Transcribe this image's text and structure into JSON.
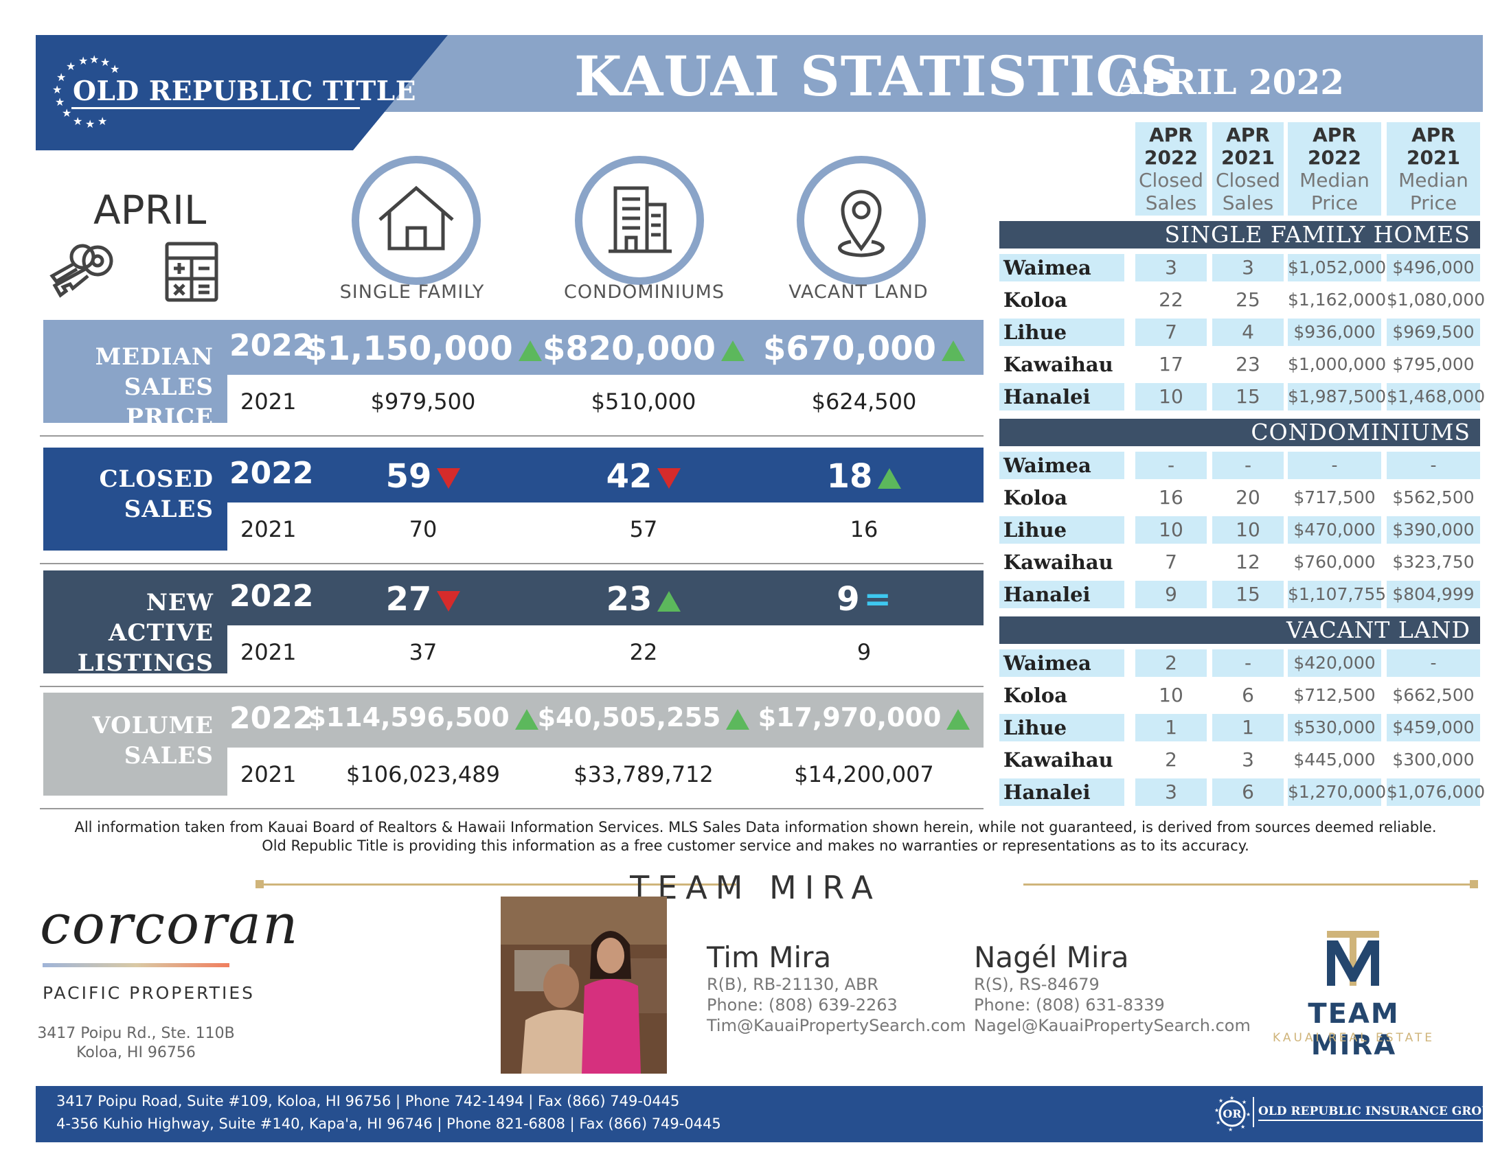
{
  "header": {
    "logo_text": "OLD REPUBLIC TITLE",
    "title": "KAUAI STATISTICS",
    "month": "APRIL 2022"
  },
  "month_label": "APRIL",
  "property_types": [
    {
      "label": "SINGLE FAMILY",
      "icon": "house-icon"
    },
    {
      "label": "CONDOMINIUMS",
      "icon": "building-icon"
    },
    {
      "label": "VACANT LAND",
      "icon": "location-pin-icon"
    }
  ],
  "stats": [
    {
      "label_line1": "MEDIAN",
      "label_line2": "SALES PRICE",
      "color": "#8aa4c8",
      "year1": "2022",
      "year2": "2021",
      "values_2022": [
        "$1,150,000",
        "$820,000",
        "$670,000"
      ],
      "trends": [
        "up",
        "up",
        "up"
      ],
      "values_2021": [
        "$979,500",
        "$510,000",
        "$624,500"
      ]
    },
    {
      "label_line1": "CLOSED",
      "label_line2": "SALES",
      "color": "#264f8f",
      "year1": "2022",
      "year2": "2021",
      "values_2022": [
        "59",
        "42",
        "18"
      ],
      "trends": [
        "down",
        "down",
        "up"
      ],
      "values_2021": [
        "70",
        "57",
        "16"
      ]
    },
    {
      "label_line1": "NEW ACTIVE",
      "label_line2": "LISTINGS",
      "color": "#3c5068",
      "year1": "2022",
      "year2": "2021",
      "values_2022": [
        "27",
        "23",
        "9"
      ],
      "trends": [
        "down",
        "up",
        "equal"
      ],
      "values_2021": [
        "37",
        "22",
        "9"
      ]
    },
    {
      "label_line1": "VOLUME",
      "label_line2": "SALES",
      "color": "#b8bcbd",
      "year1": "2022",
      "year2": "2021",
      "values_2022": [
        "$114,596,500",
        "$40,505,255",
        "$17,970,000"
      ],
      "trends": [
        "up",
        "up",
        "up"
      ],
      "values_2021": [
        "$106,023,489",
        "$33,789,712",
        "$14,200,007"
      ]
    }
  ],
  "table": {
    "headers": [
      {
        "l1": "APR",
        "l2": "2022",
        "l3": "Closed",
        "l4": "Sales"
      },
      {
        "l1": "APR",
        "l2": "2021",
        "l3": "Closed",
        "l4": "Sales"
      },
      {
        "l1": "APR",
        "l2": "2022",
        "l3": "Median",
        "l4": "Price"
      },
      {
        "l1": "APR",
        "l2": "2021",
        "l3": "Median",
        "l4": "Price"
      }
    ],
    "sections": [
      {
        "title": "SINGLE FAMILY HOMES",
        "rows": [
          [
            "Waimea",
            "3",
            "3",
            "$1,052,000",
            "$496,000"
          ],
          [
            "Koloa",
            "22",
            "25",
            "$1,162,000",
            "$1,080,000"
          ],
          [
            "Lihue",
            "7",
            "4",
            "$936,000",
            "$969,500"
          ],
          [
            "Kawaihau",
            "17",
            "23",
            "$1,000,000",
            "$795,000"
          ],
          [
            "Hanalei",
            "10",
            "15",
            "$1,987,500",
            "$1,468,000"
          ]
        ]
      },
      {
        "title": "CONDOMINIUMS",
        "rows": [
          [
            "Waimea",
            "-",
            "-",
            "-",
            "-"
          ],
          [
            "Koloa",
            "16",
            "20",
            "$717,500",
            "$562,500"
          ],
          [
            "Lihue",
            "10",
            "10",
            "$470,000",
            "$390,000"
          ],
          [
            "Kawaihau",
            "7",
            "12",
            "$760,000",
            "$323,750"
          ],
          [
            "Hanalei",
            "9",
            "15",
            "$1,107,755",
            "$804,999"
          ]
        ]
      },
      {
        "title": "VACANT LAND",
        "rows": [
          [
            "Waimea",
            "2",
            "-",
            "$420,000",
            "-"
          ],
          [
            "Koloa",
            "10",
            "6",
            "$712,500",
            "$662,500"
          ],
          [
            "Lihue",
            "1",
            "1",
            "$530,000",
            "$459,000"
          ],
          [
            "Kawaihau",
            "2",
            "3",
            "$445,000",
            "$300,000"
          ],
          [
            "Hanalei",
            "3",
            "6",
            "$1,270,000",
            "$1,076,000"
          ]
        ]
      }
    ]
  },
  "disclaimer": {
    "line1": "All information taken from Kauai Board of Realtors & Hawaii Information Services.  MLS Sales Data information shown herein, while not guaranteed, is derived from sources deemed reliable.",
    "line2": "Old Republic Title is providing this information as a free customer service and makes no warranties or representations as to its accuracy."
  },
  "team": {
    "heading": "TEAM MIRA"
  },
  "corcoran": {
    "logo": "corcoran",
    "sub": "PACIFIC PROPERTIES",
    "address1": "3417 Poipu Rd., Ste. 110B",
    "address2": "Koloa, HI 96756"
  },
  "agents": [
    {
      "name": "Tim Mira",
      "license": "R(B), RB-21130, ABR",
      "phone": "Phone: (808) 639-2263",
      "email": "Tim@KauaiPropertySearch.com"
    },
    {
      "name": "Nagél Mira",
      "license": "R(S), RS-84679",
      "phone": "Phone: (808) 631-8339",
      "email": "Nagel@KauaiPropertySearch.com"
    }
  ],
  "team_logo": {
    "name": "TEAM MIRA",
    "sub": "KAUAI REAL ESTATE"
  },
  "footer": {
    "addr1": "3417 Poipu Road, Suite #109, Koloa, HI 96756 | Phone 742-1494 | Fax (866) 749-0445",
    "addr2": "4-356 Kuhio Highway, Suite #140, Kapa'a, HI  96746 | Phone 821-6808 | Fax (866) 749-0445",
    "group_logo": "OLD REPUBLIC INSURANCE GROUP"
  },
  "colors": {
    "navy": "#264f8f",
    "steel": "#8aa4c8",
    "slate": "#3c5068",
    "gray": "#b8bcbd",
    "up": "#5cb85c",
    "down": "#d62b2b",
    "equal": "#3ec8f0",
    "table_shade": "#cdebf8"
  }
}
